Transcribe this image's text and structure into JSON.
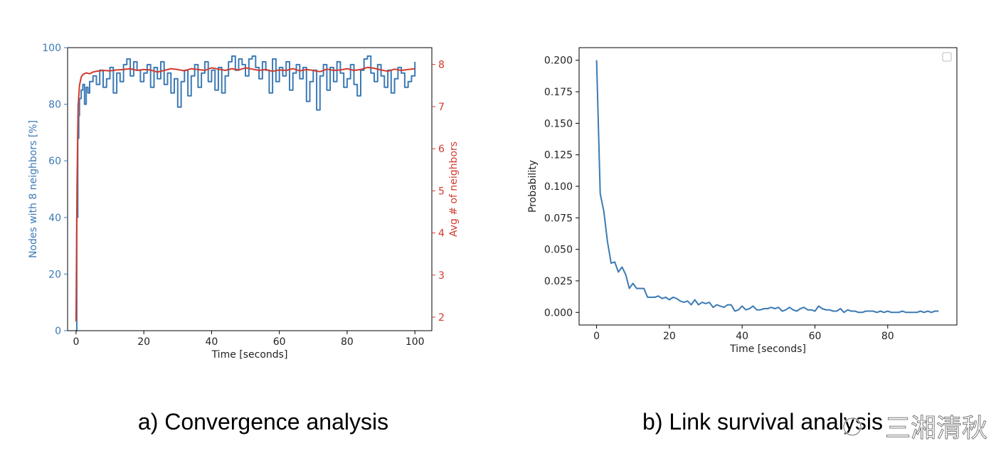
{
  "captions": {
    "a": "a)   Convergence analysis",
    "b": "b)   Link survival analysis"
  },
  "watermark": {
    "text": "三湘清秋"
  },
  "colors": {
    "blue": "#3c7ab5",
    "red": "#d23a2e",
    "axis": "#000000"
  },
  "chart_data": [
    {
      "type": "line",
      "xlabel": "Time [seconds]",
      "ylabel": "Nodes with 8 neighbors [%]",
      "y2label": "Avg # of neighbors",
      "xlim": [
        -2.5,
        105
      ],
      "ylim": [
        0,
        100
      ],
      "y2lim": [
        1.68,
        8.4
      ],
      "xticks": [
        0,
        20,
        40,
        60,
        80,
        100
      ],
      "yticks": [
        0,
        20,
        40,
        60,
        80,
        100
      ],
      "y2ticks": [
        2,
        3,
        4,
        5,
        6,
        7,
        8
      ],
      "grid": false,
      "series": [
        {
          "color": "#3c7ab5",
          "axis": "left",
          "step": true,
          "x": [
            0,
            0.2,
            0.5,
            0.8,
            1,
            1.5,
            2,
            2.5,
            3,
            3.5,
            4,
            5,
            6,
            7,
            8,
            9,
            10,
            11,
            12,
            13,
            14,
            15,
            16,
            17,
            18,
            19,
            20,
            21,
            22,
            23,
            24,
            25,
            26,
            27,
            28,
            29,
            30,
            31,
            32,
            33,
            34,
            35,
            36,
            37,
            38,
            39,
            40,
            41,
            42,
            43,
            44,
            45,
            46,
            47,
            48,
            49,
            50,
            51,
            52,
            53,
            54,
            55,
            56,
            57,
            58,
            59,
            60,
            61,
            62,
            63,
            64,
            65,
            66,
            67,
            68,
            69,
            70,
            71,
            72,
            73,
            74,
            75,
            76,
            77,
            78,
            79,
            80,
            81,
            82,
            83,
            84,
            85,
            86,
            87,
            88,
            89,
            90,
            91,
            92,
            93,
            94,
            95,
            96,
            97,
            98,
            99,
            100
          ],
          "y": [
            0,
            40,
            68,
            76,
            82,
            85,
            87,
            80,
            86,
            84,
            88,
            90,
            87,
            92,
            86,
            89,
            93,
            84,
            91,
            88,
            94,
            96,
            90,
            95,
            92,
            88,
            91,
            94,
            86,
            93,
            89,
            95,
            87,
            91,
            84,
            89,
            79,
            88,
            92,
            83,
            90,
            94,
            86,
            91,
            95,
            88,
            92,
            85,
            93,
            84,
            90,
            95,
            97,
            92,
            96,
            94,
            90,
            96,
            97,
            93,
            89,
            95,
            92,
            84,
            96,
            88,
            93,
            90,
            95,
            85,
            91,
            94,
            89,
            93,
            81,
            88,
            92,
            78,
            90,
            94,
            85,
            93,
            88,
            95,
            91,
            86,
            89,
            94,
            87,
            83,
            92,
            96,
            97,
            91,
            88,
            94,
            90,
            86,
            92,
            84,
            89,
            93,
            91,
            86,
            88,
            90,
            95
          ]
        },
        {
          "color": "#d23a2e",
          "axis": "right",
          "step": false,
          "x": [
            0,
            0.3,
            0.6,
            1,
            1.5,
            2,
            3,
            4,
            5,
            6,
            8,
            10,
            12,
            14,
            16,
            18,
            20,
            22,
            24,
            26,
            28,
            30,
            32,
            34,
            36,
            38,
            40,
            42,
            44,
            46,
            48,
            50,
            52,
            54,
            56,
            58,
            60,
            62,
            64,
            66,
            68,
            70,
            72,
            74,
            76,
            78,
            80,
            82,
            84,
            86,
            88,
            90,
            92,
            94,
            96,
            98,
            100
          ],
          "y": [
            1.9,
            5.2,
            7.0,
            7.5,
            7.7,
            7.76,
            7.8,
            7.78,
            7.82,
            7.84,
            7.86,
            7.85,
            7.87,
            7.88,
            7.9,
            7.86,
            7.88,
            7.87,
            7.82,
            7.86,
            7.9,
            7.88,
            7.85,
            7.9,
            7.88,
            7.86,
            7.92,
            7.89,
            7.86,
            7.9,
            7.87,
            7.92,
            7.89,
            7.86,
            7.88,
            7.84,
            7.87,
            7.86,
            7.9,
            7.85,
            7.88,
            7.86,
            7.83,
            7.89,
            7.86,
            7.87,
            7.9,
            7.86,
            7.88,
            7.93,
            7.91,
            7.87,
            7.84,
            7.89,
            7.86,
            7.88,
            7.9
          ]
        }
      ]
    },
    {
      "type": "line",
      "xlabel": "Time [seconds]",
      "ylabel": "Probability",
      "xlim": [
        -4.8,
        99
      ],
      "ylim": [
        -0.01,
        0.21
      ],
      "xticks": [
        0,
        20,
        40,
        60,
        80
      ],
      "yticks": [
        0.0,
        0.025,
        0.05,
        0.075,
        0.1,
        0.125,
        0.15,
        0.175,
        0.2
      ],
      "ytick_labels": [
        "0.000",
        "0.025",
        "0.050",
        "0.075",
        "0.100",
        "0.125",
        "0.150",
        "0.175",
        "0.200"
      ],
      "grid": false,
      "legend": "top-right (empty)",
      "series": [
        {
          "color": "#3c7ab5",
          "x": [
            0,
            1,
            2,
            3,
            4,
            5,
            6,
            7,
            8,
            9,
            10,
            11,
            12,
            13,
            14,
            15,
            16,
            17,
            18,
            19,
            20,
            21,
            22,
            23,
            24,
            25,
            26,
            27,
            28,
            29,
            30,
            31,
            32,
            33,
            34,
            35,
            36,
            37,
            38,
            39,
            40,
            41,
            42,
            43,
            44,
            45,
            46,
            47,
            48,
            49,
            50,
            51,
            52,
            53,
            54,
            55,
            56,
            57,
            58,
            59,
            60,
            61,
            62,
            63,
            64,
            65,
            66,
            67,
            68,
            69,
            70,
            71,
            72,
            73,
            74,
            75,
            76,
            77,
            78,
            79,
            80,
            81,
            82,
            83,
            84,
            85,
            86,
            87,
            88,
            89,
            90,
            91,
            92,
            93,
            94
          ],
          "y": [
            0.2,
            0.094,
            0.08,
            0.056,
            0.039,
            0.04,
            0.032,
            0.036,
            0.03,
            0.019,
            0.023,
            0.019,
            0.019,
            0.019,
            0.012,
            0.012,
            0.012,
            0.013,
            0.011,
            0.012,
            0.01,
            0.012,
            0.011,
            0.009,
            0.008,
            0.009,
            0.006,
            0.01,
            0.006,
            0.008,
            0.007,
            0.008,
            0.004,
            0.006,
            0.005,
            0.004,
            0.006,
            0.006,
            0.001,
            0.002,
            0.005,
            0.002,
            0.003,
            0.005,
            0.002,
            0.002,
            0.003,
            0.003,
            0.004,
            0.003,
            0.004,
            0.001,
            0.002,
            0.004,
            0.002,
            0.001,
            0.003,
            0.004,
            0.002,
            0.002,
            0.001,
            0.005,
            0.003,
            0.002,
            0.002,
            0.001,
            0.001,
            0.003,
            0.0,
            0.002,
            0.001,
            0.001,
            0.0,
            0.0,
            0.001,
            0.001,
            0.001,
            0.0,
            0.001,
            0.0,
            0.001,
            0.0,
            0.0,
            0.0,
            0.001,
            0.0,
            0.0,
            0.0,
            0.0,
            0.001,
            0.0,
            0.001,
            0.0,
            0.001,
            0.001
          ]
        }
      ]
    }
  ]
}
